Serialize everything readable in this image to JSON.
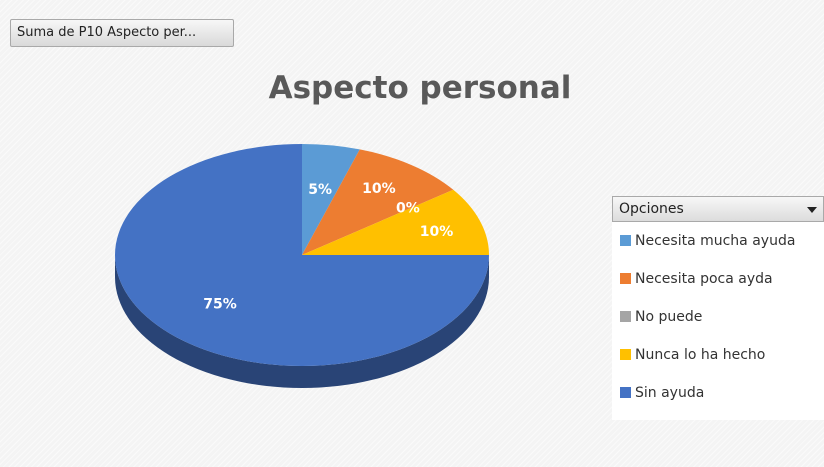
{
  "filter_button": {
    "label": "Suma de P10 Aspecto per..."
  },
  "legend": {
    "header": "Opciones",
    "items": [
      {
        "label": "Necesita mucha ayuda",
        "color": "#5b9bd5"
      },
      {
        "label": "Necesita poca ayda",
        "color": "#ed7d31"
      },
      {
        "label": "No puede",
        "color": "#a5a5a5"
      },
      {
        "label": "Nunca lo ha hecho",
        "color": "#ffc000"
      },
      {
        "label": "Sin ayuda",
        "color": "#4472c4"
      }
    ]
  },
  "chart_data": {
    "type": "pie",
    "title": "Aspecto personal",
    "style": "3d",
    "categories": [
      "Necesita mucha ayuda",
      "Necesita poca ayda",
      "No puede",
      "Nunca lo ha hecho",
      "Sin ayuda"
    ],
    "values": [
      5,
      10,
      0,
      10,
      75
    ],
    "labels": [
      "5%",
      "10%",
      "0%",
      "10%",
      "75%"
    ],
    "colors": [
      "#5b9bd5",
      "#ed7d31",
      "#a5a5a5",
      "#ffc000",
      "#4472c4"
    ],
    "legend_position": "right"
  }
}
